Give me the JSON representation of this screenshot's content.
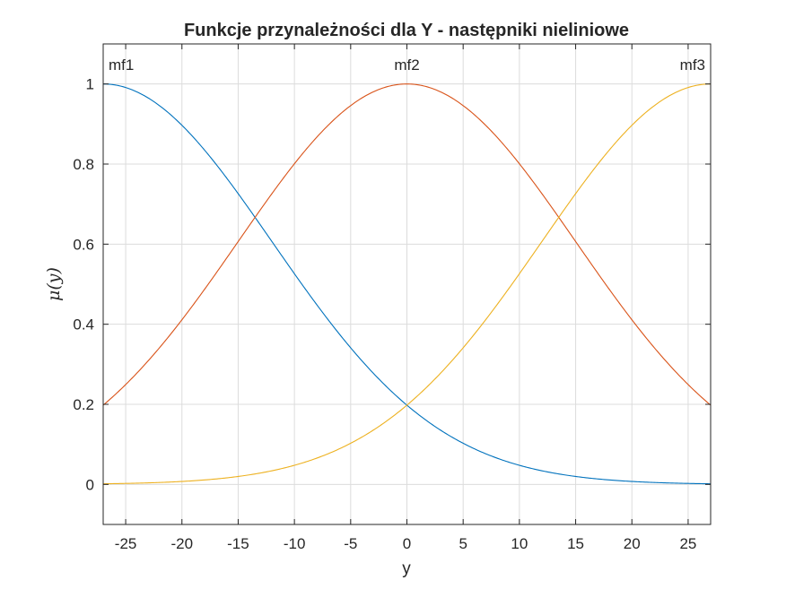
{
  "chart_data": {
    "type": "line",
    "title": "Funkcje przynależności dla Y - następniki nieliniowe",
    "xlabel": "y",
    "ylabel": "μ(y)",
    "xlim": [
      -27,
      27
    ],
    "ylim": [
      -0.1,
      1.1
    ],
    "xticks": [
      -25,
      -20,
      -15,
      -10,
      -5,
      0,
      5,
      10,
      15,
      20,
      25
    ],
    "xtick_labels": [
      "-25",
      "-20",
      "-15",
      "-10",
      "-5",
      "0",
      "5",
      "10",
      "15",
      "20",
      "25"
    ],
    "yticks": [
      0,
      0.2,
      0.4,
      0.6,
      0.8,
      1
    ],
    "ytick_labels": [
      "0",
      "0.2",
      "0.4",
      "0.6",
      "0.8",
      "1"
    ],
    "grid": true,
    "curve_type": "gaussian",
    "series": [
      {
        "name": "mf1",
        "center": -27,
        "sigma": 15.0,
        "color": "#0072BD",
        "label_x": -27
      },
      {
        "name": "mf2",
        "center": 0,
        "sigma": 15.0,
        "color": "#D95319",
        "label_x": 0
      },
      {
        "name": "mf3",
        "center": 27,
        "sigma": 15.0,
        "color": "#EDB120",
        "label_x": 27
      }
    ]
  }
}
